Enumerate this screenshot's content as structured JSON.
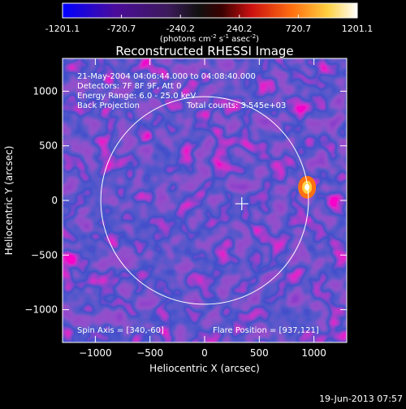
{
  "chart_data": {
    "type": "heatmap",
    "title": "Reconstructed RHESSI Image",
    "xlabel": "Heliocentric X (arcsec)",
    "ylabel": "Heliocentric Y (arcsec)",
    "xlim": [
      -1300,
      1300
    ],
    "ylim": [
      -1300,
      1300
    ],
    "x_ticks": [
      -1000,
      -500,
      0,
      500,
      1000
    ],
    "y_ticks": [
      -1000,
      -500,
      0,
      500,
      1000
    ],
    "colorbar": {
      "ticks": [
        "-1201.1",
        "-720.7",
        "-240.2",
        "240.2",
        "720.7",
        "1201.1"
      ],
      "min": -1201.1,
      "max": 1201.1,
      "unit_main": "(photons cm",
      "unit_exp1": "-2",
      "unit_mid": " s",
      "unit_exp2": "-1",
      "unit_end": " asec",
      "unit_exp3": "-2",
      "unit_close": ")"
    },
    "info_lines": [
      "21-May-2004 04:06:44.000 to 04:08:40.000",
      "Detectors: 7F 8F 9F, Att 0",
      "Energy Range: 6.0 - 25.0 keV"
    ],
    "method": "Back Projection",
    "total_counts": "Total counts: 3.545e+03",
    "spin_axis": "Spin Axis = [340,-60]",
    "flare_position": "Flare Position = [937,121]",
    "solar_limb": {
      "center": [
        0,
        0
      ],
      "radius": 950
    },
    "flare_marker": [
      340,
      -30
    ],
    "bright_source": {
      "x": 937,
      "y": 121,
      "value": 1201.1
    }
  },
  "timestamp": "19-Jun-2013 07:57"
}
